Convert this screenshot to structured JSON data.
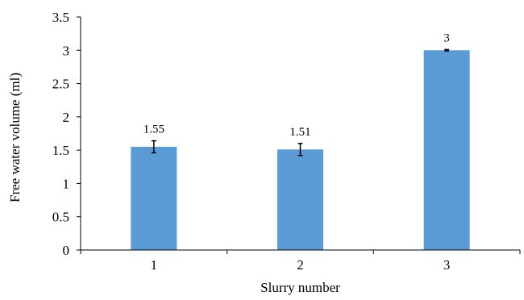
{
  "chart_data": {
    "type": "bar",
    "categories": [
      "1",
      "2",
      "3"
    ],
    "values": [
      1.55,
      1.51,
      3
    ],
    "error": [
      0.09,
      0.09,
      0.01
    ],
    "data_labels": [
      "1.55",
      "1.51",
      "3"
    ],
    "title": "",
    "xlabel": "Slurry number",
    "ylabel": "Free water volume (ml)",
    "ylim": [
      0,
      3.5
    ],
    "yticks": [
      0,
      0.5,
      1,
      1.5,
      2,
      2.5,
      3,
      3.5
    ],
    "ytick_labels": [
      "0",
      "0.5",
      "1",
      "1.5",
      "2",
      "2.5",
      "3",
      "3.5"
    ],
    "grid": false,
    "legend": "none",
    "bar_color": "#5b9bd5",
    "axis_color": "#000000"
  }
}
